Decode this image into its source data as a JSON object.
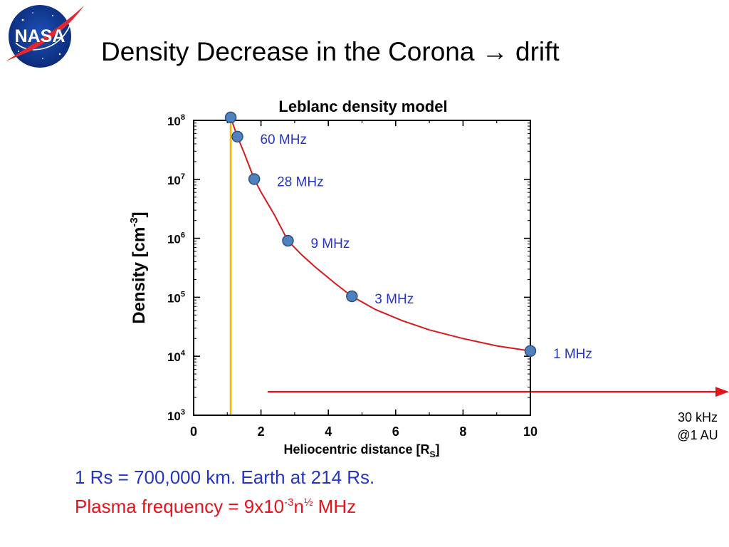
{
  "slide": {
    "title_text": "Density Decrease in the Corona",
    "title_arrow": "→",
    "title_suffix": "drift",
    "logo_text": "NASA"
  },
  "chart_data": {
    "type": "line",
    "title": "Leblanc density model",
    "xlabel": "Heliocentric distance [R",
    "xlabel_sub": "S",
    "xlabel_tail": "]",
    "ylabel": "Density [cm",
    "ylabel_sup": "-3",
    "ylabel_tail": "]",
    "x_scale": "linear",
    "y_scale": "log",
    "xlim": [
      0,
      10
    ],
    "ylim": [
      1000,
      100000000
    ],
    "x_ticks": [
      0,
      2,
      4,
      6,
      8,
      10
    ],
    "x_tick_labels": [
      "0",
      "2",
      "4",
      "6",
      "8",
      "10"
    ],
    "y_ticks": [
      1000,
      10000,
      100000,
      1000000,
      10000000,
      100000000
    ],
    "y_tick_labels": [
      {
        "base": "10",
        "exp": "3"
      },
      {
        "base": "10",
        "exp": "4"
      },
      {
        "base": "10",
        "exp": "5"
      },
      {
        "base": "10",
        "exp": "6"
      },
      {
        "base": "10",
        "exp": "7"
      },
      {
        "base": "10",
        "exp": "8"
      }
    ],
    "curve": {
      "color": "#d7191c",
      "x": [
        1.1,
        1.3,
        1.5,
        1.8,
        2.0,
        2.4,
        2.8,
        3.2,
        3.6,
        4.2,
        4.7,
        5.4,
        6.2,
        7.0,
        8.0,
        9.0,
        10.0
      ],
      "y": [
        112000000,
        53000000,
        28000000,
        10100000,
        6100000,
        2500000,
        910000,
        530000,
        330000,
        172000,
        104000,
        62000,
        40000,
        28000,
        20000,
        15000,
        12300
      ]
    },
    "photosphere_line": {
      "x": 1.1,
      "color": "#f7b500"
    },
    "points": {
      "color": "#4f81bd",
      "edge": "#2f4f7f",
      "items": [
        {
          "x": 1.1,
          "y": 112000000,
          "label": ""
        },
        {
          "x": 1.3,
          "y": 53000000,
          "label": "60 MHz"
        },
        {
          "x": 1.8,
          "y": 10100000,
          "label": "28 MHz"
        },
        {
          "x": 2.8,
          "y": 910000,
          "label": "9 MHz"
        },
        {
          "x": 4.7,
          "y": 104000,
          "label": "3 MHz"
        },
        {
          "x": 10.0,
          "y": 12300,
          "label": "1 MHz"
        }
      ]
    },
    "label_color": "#2436c2",
    "drift_arrow": {
      "from_x": 2.2,
      "y": 2000,
      "color": "#e4141b",
      "annotation": [
        "30 kHz",
        "@1 AU"
      ]
    }
  },
  "notes": {
    "rs_line": "1 Rs = 700,000 km. Earth at 214 Rs.",
    "plasma_prefix": "Plasma frequency = 9x10",
    "plasma_exp": "-3",
    "plasma_mid": "n",
    "plasma_half": "½",
    "plasma_unit": " MHz"
  }
}
